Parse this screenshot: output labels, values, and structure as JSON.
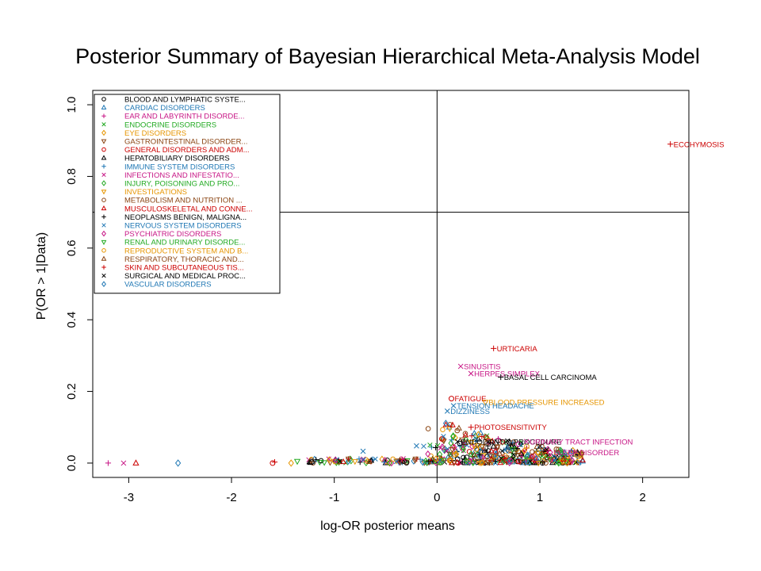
{
  "chart_data": {
    "type": "scatter",
    "title": "Posterior Summary of Bayesian Hierarchical Meta-Analysis Model",
    "xlabel": "log-OR posterior means",
    "ylabel": "P(OR > 1|Data)",
    "xlim": [
      -3.35,
      2.45
    ],
    "ylim": [
      -0.04,
      1.04
    ],
    "xticks": [
      -3,
      -2,
      -1,
      0,
      1,
      2
    ],
    "yticks": [
      0.0,
      0.2,
      0.4,
      0.6,
      0.8,
      1.0
    ],
    "xtick_labels": [
      "-3",
      "-2",
      "-1",
      "0",
      "1",
      "2"
    ],
    "ytick_labels": [
      "0.0",
      "0.2",
      "0.4",
      "0.6",
      "0.8",
      "1.0"
    ],
    "reference_lines": {
      "x": 0,
      "y": 0.7
    },
    "legend_position": "top-left",
    "series": [
      {
        "name": "BLOOD AND LYMPHATIC SYSTE...",
        "color": "#000000",
        "marker": "circle"
      },
      {
        "name": "CARDIAC DISORDERS",
        "color": "#1f77b4",
        "marker": "triangle"
      },
      {
        "name": "EAR AND LABYRINTH DISORDE...",
        "color": "#c71585",
        "marker": "plus"
      },
      {
        "name": "ENDOCRINE DISORDERS",
        "color": "#22aa22",
        "marker": "cross"
      },
      {
        "name": "EYE DISORDERS",
        "color": "#e69500",
        "marker": "diamond"
      },
      {
        "name": "GASTROINTESTINAL DISORDER...",
        "color": "#8b4513",
        "marker": "triangle-down"
      },
      {
        "name": "GENERAL DISORDERS AND ADM...",
        "color": "#cc0000",
        "marker": "circle"
      },
      {
        "name": "HEPATOBILIARY DISORDERS",
        "color": "#000000",
        "marker": "triangle"
      },
      {
        "name": "IMMUNE SYSTEM DISORDERS",
        "color": "#1f77b4",
        "marker": "plus"
      },
      {
        "name": "INFECTIONS AND INFESTATIO...",
        "color": "#c71585",
        "marker": "cross"
      },
      {
        "name": "INJURY, POISONING AND PRO...",
        "color": "#22aa22",
        "marker": "diamond"
      },
      {
        "name": "INVESTIGATIONS",
        "color": "#e69500",
        "marker": "triangle-down"
      },
      {
        "name": "METABOLISM AND NUTRITION ...",
        "color": "#8b4513",
        "marker": "circle"
      },
      {
        "name": "MUSCULOSKELETAL AND CONNE...",
        "color": "#cc0000",
        "marker": "triangle"
      },
      {
        "name": "NEOPLASMS BENIGN, MALIGNA...",
        "color": "#000000",
        "marker": "plus"
      },
      {
        "name": "NERVOUS SYSTEM DISORDERS",
        "color": "#1f77b4",
        "marker": "cross"
      },
      {
        "name": "PSYCHIATRIC DISORDERS",
        "color": "#c71585",
        "marker": "diamond"
      },
      {
        "name": "RENAL AND URINARY DISORDE...",
        "color": "#22aa22",
        "marker": "triangle-down"
      },
      {
        "name": "REPRODUCTIVE SYSTEM AND B...",
        "color": "#e69500",
        "marker": "circle"
      },
      {
        "name": "RESPIRATORY, THORACIC AND...",
        "color": "#8b4513",
        "marker": "triangle"
      },
      {
        "name": "SKIN AND SUBCUTANEOUS TIS...",
        "color": "#cc0000",
        "marker": "plus"
      },
      {
        "name": "SURGICAL AND MEDICAL PROC...",
        "color": "#000000",
        "marker": "cross"
      },
      {
        "name": "VASCULAR DISORDERS",
        "color": "#1f77b4",
        "marker": "diamond"
      }
    ],
    "labeled_points": [
      {
        "label": "ECCHYMOSIS",
        "x": 2.27,
        "y": 0.89,
        "series": 20
      },
      {
        "label": "URTICARIA",
        "x": 0.55,
        "y": 0.32,
        "series": 20
      },
      {
        "label": "SINUSITIS",
        "x": 0.23,
        "y": 0.27,
        "series": 9
      },
      {
        "label": "HERPES SIMPLEX",
        "x": 0.33,
        "y": 0.25,
        "series": 9
      },
      {
        "label": "BASAL CELL CARCINOMA",
        "x": 0.62,
        "y": 0.24,
        "series": 14
      },
      {
        "label": "FATIGUE",
        "x": 0.14,
        "y": 0.18,
        "series": 6
      },
      {
        "label": "BLOOD PRESSURE INCREASED",
        "x": 0.47,
        "y": 0.17,
        "series": 11
      },
      {
        "label": "TENSION HEADACHE",
        "x": 0.16,
        "y": 0.16,
        "series": 15
      },
      {
        "label": "DIZZINESS",
        "x": 0.1,
        "y": 0.145,
        "series": 15
      },
      {
        "label": "PHOTOSENSITIVITY",
        "x": 0.33,
        "y": 0.1,
        "series": 20
      },
      {
        "label": "ENDODONTIC PROCEDURE",
        "x": 0.2,
        "y": 0.06,
        "series": 21
      },
      {
        "label": "URINARY TRACT INFECTION",
        "x": 0.87,
        "y": 0.06,
        "series": 9
      },
      {
        "label": "SLEEP DISORDER",
        "x": 1.1,
        "y": 0.03,
        "series": 16
      }
    ],
    "point_groups": [
      {
        "series": 2,
        "x": -3.2,
        "y": 0.0
      },
      {
        "series": 9,
        "x": -3.05,
        "y": 0.0
      },
      {
        "series": 13,
        "x": -2.93,
        "y": 0.0
      },
      {
        "series": 22,
        "x": -2.52,
        "y": 0.0
      },
      {
        "series": 6,
        "x": -1.6,
        "y": 0.0
      },
      {
        "series": 20,
        "x": -1.58,
        "y": 0.003
      },
      {
        "series": 4,
        "x": -1.42,
        "y": 0.0
      },
      {
        "series": 17,
        "x": -1.36,
        "y": 0.005
      },
      {
        "series": 0,
        "x": -1.22,
        "y": 0.003
      },
      {
        "series": 15,
        "x": -0.72,
        "y": 0.033
      },
      {
        "series": 15,
        "x": -0.2,
        "y": 0.048
      },
      {
        "series": 15,
        "x": -0.13,
        "y": 0.047
      },
      {
        "series": 9,
        "x": -0.33,
        "y": 0.012
      }
    ]
  }
}
